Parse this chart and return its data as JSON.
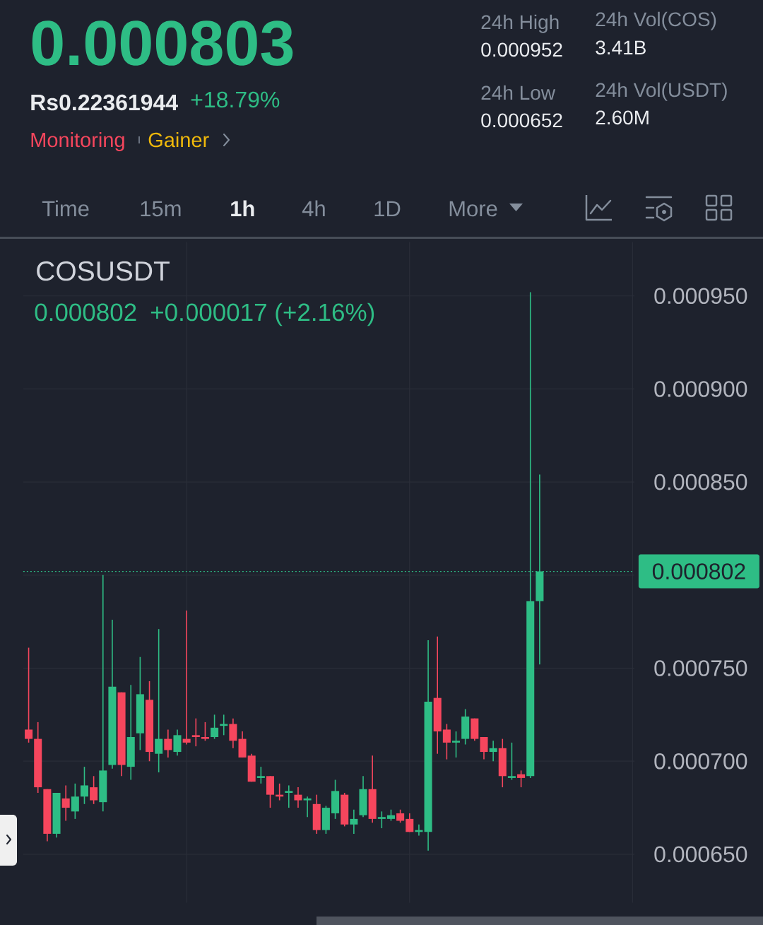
{
  "chart_data": {
    "type": "candlestick",
    "title": "COSUSDT",
    "categories": [
      null,
      null,
      null,
      null,
      null,
      null,
      null,
      null,
      null,
      null,
      null,
      null,
      null,
      null,
      null,
      null,
      null,
      null,
      null,
      null,
      null,
      null,
      null,
      null,
      null,
      null,
      null,
      null,
      null,
      null,
      null,
      null,
      null,
      null,
      null,
      null,
      null,
      null,
      null,
      null,
      null,
      null,
      null,
      null,
      null,
      null,
      null,
      null,
      null,
      null,
      null,
      null,
      null,
      null,
      null,
      null
    ],
    "ohlc": [
      [
        0.000717,
        0.000761,
        0.00071,
        0.000712
      ],
      [
        0.000712,
        0.000721,
        0.000683,
        0.000686
      ],
      [
        0.000685,
        0.000685,
        0.000657,
        0.000661
      ],
      [
        0.000661,
        0.000683,
        0.000659,
        0.000683
      ],
      [
        0.00068,
        0.000687,
        0.000668,
        0.000675
      ],
      [
        0.000673,
        0.000688,
        0.000669,
        0.000681
      ],
      [
        0.000681,
        0.000697,
        0.000677,
        0.000687
      ],
      [
        0.000686,
        0.000692,
        0.000677,
        0.000679
      ],
      [
        0.000678,
        0.0008,
        0.000673,
        0.000695
      ],
      [
        0.000698,
        0.000776,
        0.000696,
        0.00074
      ],
      [
        0.000737,
        0.000737,
        0.000692,
        0.000698
      ],
      [
        0.000697,
        0.000741,
        0.00069,
        0.000713
      ],
      [
        0.000715,
        0.000756,
        0.000706,
        0.000736
      ],
      [
        0.000733,
        0.000743,
        0.0007,
        0.000705
      ],
      [
        0.000704,
        0.000771,
        0.000694,
        0.000712
      ],
      [
        0.000712,
        0.000717,
        0.000702,
        0.000706
      ],
      [
        0.000705,
        0.000717,
        0.000703,
        0.000714
      ],
      [
        0.000712,
        0.000781,
        0.000709,
        0.00071
      ],
      [
        0.000714,
        0.000723,
        0.000708,
        0.000713
      ],
      [
        0.000713,
        0.000721,
        0.000711,
        0.000712
      ],
      [
        0.000713,
        0.000725,
        0.000712,
        0.000718
      ],
      [
        0.000719,
        0.000725,
        0.000714,
        0.00072
      ],
      [
        0.00072,
        0.000723,
        0.000707,
        0.000711
      ],
      [
        0.000712,
        0.000716,
        0.000702,
        0.000702
      ],
      [
        0.000703,
        0.000704,
        0.000689,
        0.000689
      ],
      [
        0.000691,
        0.000697,
        0.000688,
        0.000692
      ],
      [
        0.000692,
        0.000692,
        0.000675,
        0.000682
      ],
      [
        0.000682,
        0.000688,
        0.000679,
        0.000681
      ],
      [
        0.000683,
        0.000687,
        0.000675,
        0.000684
      ],
      [
        0.000682,
        0.000686,
        0.000675,
        0.000679
      ],
      [
        0.000679,
        0.000681,
        0.00067,
        0.00068
      ],
      [
        0.000677,
        0.000682,
        0.000661,
        0.000663
      ],
      [
        0.000663,
        0.000676,
        0.000661,
        0.000675
      ],
      [
        0.000672,
        0.00069,
        0.000669,
        0.000684
      ],
      [
        0.000682,
        0.000683,
        0.000665,
        0.000666
      ],
      [
        0.000666,
        0.000674,
        0.000661,
        0.000669
      ],
      [
        0.000671,
        0.000692,
        0.00067,
        0.000685
      ],
      [
        0.000685,
        0.000703,
        0.000667,
        0.000669
      ],
      [
        0.000669,
        0.000673,
        0.000664,
        0.00067
      ],
      [
        0.000669,
        0.000674,
        0.000668,
        0.000671
      ],
      [
        0.000672,
        0.000674,
        0.000667,
        0.000668
      ],
      [
        0.000669,
        0.000672,
        0.000662,
        0.000662
      ],
      [
        0.000662,
        0.000666,
        0.00066,
        0.000663
      ],
      [
        0.000662,
        0.000765,
        0.000652,
        0.000732
      ],
      [
        0.000734,
        0.000767,
        0.000704,
        0.000716
      ],
      [
        0.000717,
        0.00072,
        0.000701,
        0.00071
      ],
      [
        0.00071,
        0.000716,
        0.000702,
        0.000711
      ],
      [
        0.000712,
        0.000728,
        0.000709,
        0.000724
      ],
      [
        0.000723,
        0.000723,
        0.000711,
        0.000712
      ],
      [
        0.000713,
        0.000713,
        0.000701,
        0.000705
      ],
      [
        0.000705,
        0.000711,
        0.0007,
        0.000707
      ],
      [
        0.000707,
        0.000712,
        0.000686,
        0.000692
      ],
      [
        0.000691,
        0.00071,
        0.00069,
        0.000692
      ],
      [
        0.000693,
        0.000695,
        0.000686,
        0.000691
      ],
      [
        0.000692,
        0.000952,
        0.000691,
        0.000786
      ],
      [
        0.000786,
        0.000854,
        0.000752,
        0.000802
      ]
    ],
    "colors": [
      "#f6465d",
      "#f6465d",
      "#f6465d",
      "#2ebd85",
      "#f6465d",
      "#2ebd85",
      "#2ebd85",
      "#f6465d",
      "#2ebd85",
      "#2ebd85",
      "#f6465d",
      "#2ebd85",
      "#2ebd85",
      "#f6465d",
      "#2ebd85",
      "#f6465d",
      "#2ebd85",
      "#f6465d",
      "#f6465d",
      "#f6465d",
      "#2ebd85",
      "#2ebd85",
      "#f6465d",
      "#f6465d",
      "#f6465d",
      "#2ebd85",
      "#f6465d",
      "#f6465d",
      "#2ebd85",
      "#f6465d",
      "#2ebd85",
      "#f6465d",
      "#2ebd85",
      "#2ebd85",
      "#f6465d",
      "#2ebd85",
      "#2ebd85",
      "#f6465d",
      "#2ebd85",
      "#2ebd85",
      "#f6465d",
      "#f6465d",
      "#2ebd85",
      "#2ebd85",
      "#f6465d",
      "#f6465d",
      "#2ebd85",
      "#2ebd85",
      "#f6465d",
      "#f6465d",
      "#2ebd85",
      "#f6465d",
      "#2ebd85",
      "#f6465d",
      "#2ebd85",
      "#2ebd85"
    ],
    "ylim": [
      0.000624,
      0.000979
    ],
    "yticks": [
      {
        "value": 0.00065,
        "label": "0.000650"
      },
      {
        "value": 0.0007,
        "label": "0.000700"
      },
      {
        "value": 0.00075,
        "label": "0.000750"
      },
      {
        "value": 0.0008,
        "label": null
      },
      {
        "value": 0.00085,
        "label": "0.000850"
      },
      {
        "value": 0.0009,
        "label": "0.000900"
      },
      {
        "value": 0.00095,
        "label": "0.000950"
      }
    ],
    "grid": "y",
    "tick_labels": "y",
    "ref_lines": [
      {
        "axis": "y",
        "value": 0.000802,
        "label": "0.000802",
        "color": "#2ebd85",
        "line_style": "dotted"
      }
    ],
    "annotations": [
      "0.000803",
      "Rs0.22361944",
      "+18.79%",
      "Monitoring",
      "Gainer",
      "24h High",
      "0.000952",
      "24h Vol(COS)",
      "3.41B",
      "24h Low",
      "0.000652",
      "24h Vol(USDT)",
      "2.60M",
      "Time",
      "15m",
      "1h",
      "4h",
      "1D",
      "More",
      "0.000802",
      "+0.000017 (+2.16%)"
    ]
  }
}
